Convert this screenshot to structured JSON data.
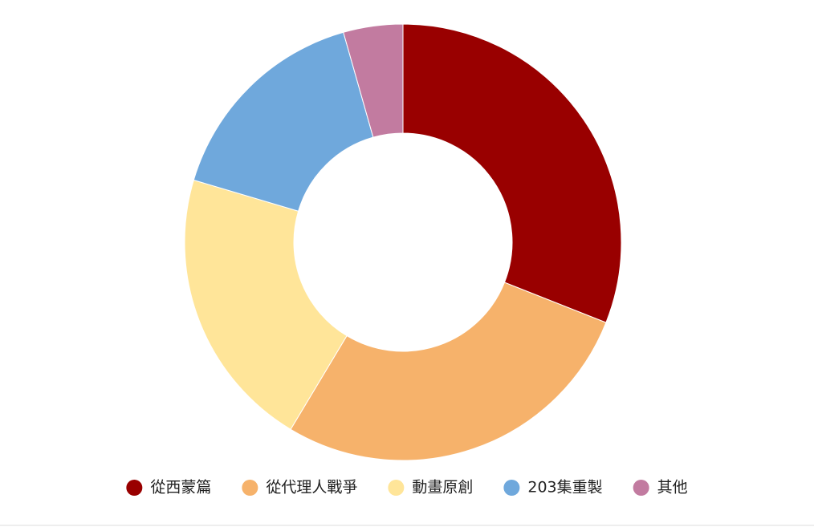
{
  "chart_data": {
    "type": "donut",
    "categories": [
      "從西蒙篇",
      "從代理人戰爭",
      "動畫原創",
      "203集重製",
      "其他"
    ],
    "values": [
      31,
      27.6,
      21,
      16,
      4.4
    ],
    "colors": [
      "#990000",
      "#f6b26b",
      "#ffe599",
      "#6fa8dc",
      "#c27ba0"
    ],
    "legend": "bottom"
  }
}
